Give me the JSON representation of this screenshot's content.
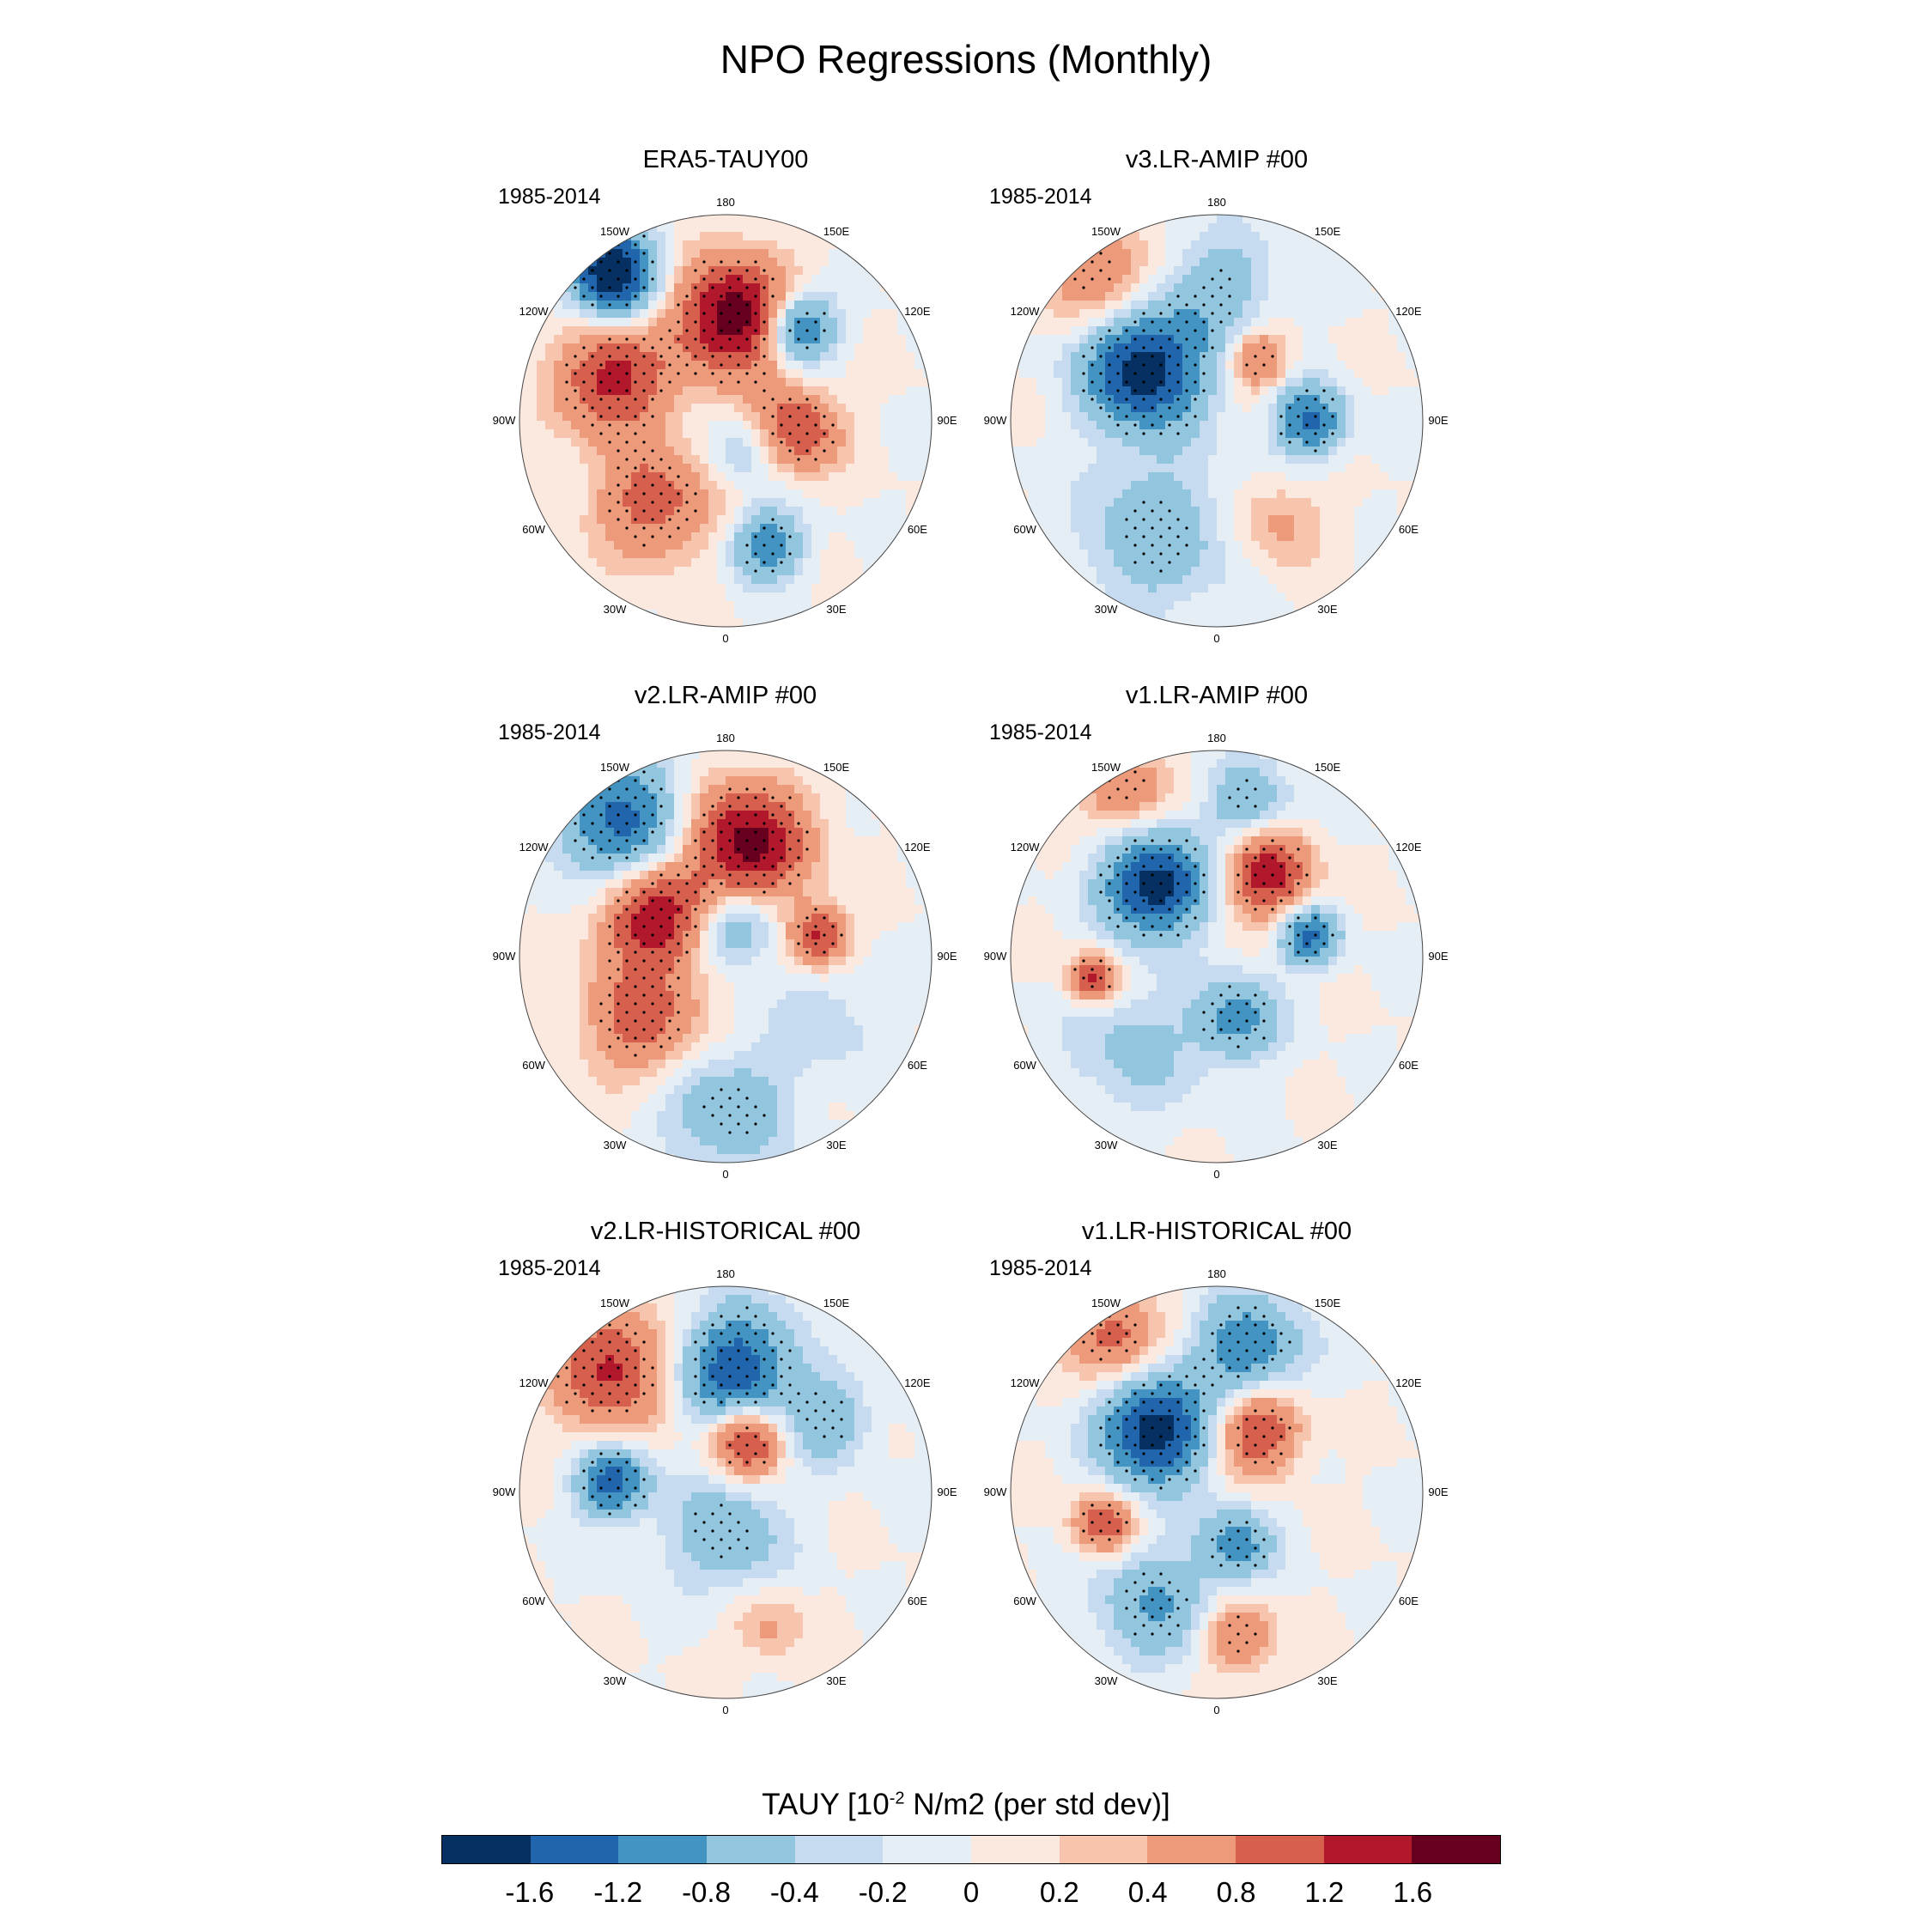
{
  "title": "NPO Regressions (Monthly)",
  "period_label": "1985-2014",
  "longitude_labels": [
    "180",
    "150E",
    "120E",
    "90E",
    "60E",
    "30E",
    "0",
    "30W",
    "60W",
    "90W",
    "120W",
    "150W"
  ],
  "panels": [
    {
      "title": "ERA5-TAUY00",
      "period": "1985-2014",
      "pattern": "era5"
    },
    {
      "title": "v3.LR-AMIP  #00",
      "period": "1985-2014",
      "pattern": "v3amip"
    },
    {
      "title": "v2.LR-AMIP  #00",
      "period": "1985-2014",
      "pattern": "v2amip"
    },
    {
      "title": "v1.LR-AMIP  #00",
      "period": "1985-2014",
      "pattern": "v1amip"
    },
    {
      "title": "v2.LR-HISTORICAL  #00",
      "period": "1985-2014",
      "pattern": "v2hist"
    },
    {
      "title": "v1.LR-HISTORICAL  #00",
      "period": "1985-2014",
      "pattern": "v1hist"
    }
  ],
  "colorbar": {
    "title_prefix": "TAUY [10",
    "title_exponent": "-2",
    "title_suffix": " N/m2 (per std dev)]",
    "labels": [
      "-1.6",
      "-1.2",
      "-0.8",
      "-0.4",
      "-0.2",
      "0",
      "0.2",
      "0.4",
      "0.8",
      "1.2",
      "1.6"
    ],
    "colors": [
      "#053061",
      "#2166ac",
      "#4393c3",
      "#92c5de",
      "#c6dbef",
      "#e6eef5",
      "#fbe8df",
      "#f7c4ad",
      "#ec9a7a",
      "#d6604d",
      "#b2182b",
      "#67001f"
    ]
  }
}
